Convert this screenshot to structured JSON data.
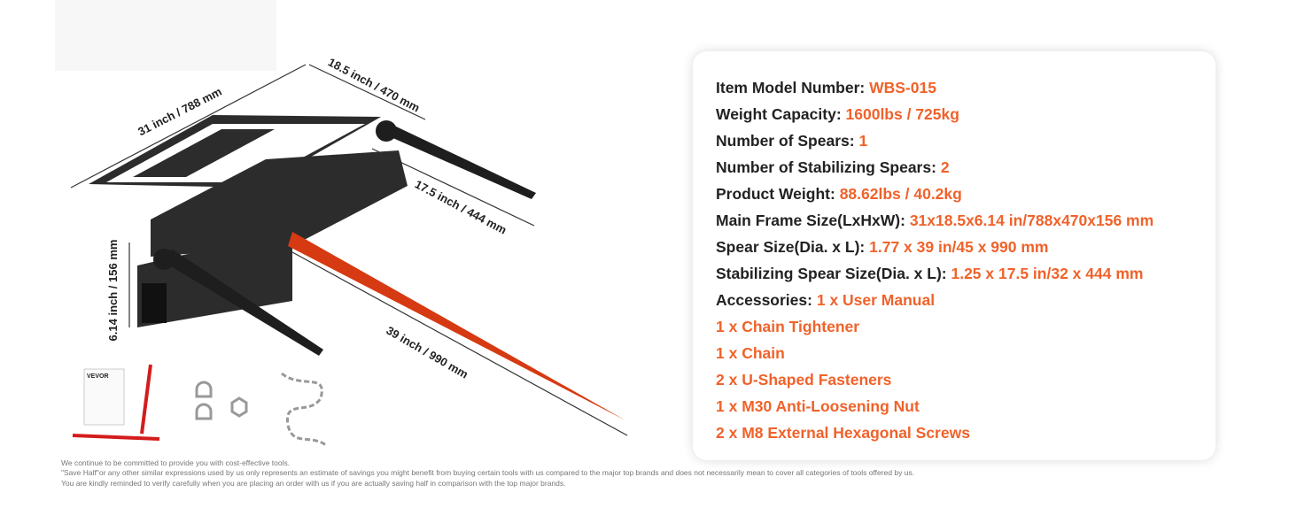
{
  "dimensions": [
    "31 inch / 788 mm",
    "18.5 inch / 470 mm",
    "17.5 inch / 444 mm",
    "6.14 inch / 156 mm",
    "39 inch / 990 mm"
  ],
  "manual_brand": "VEVOR",
  "specs": [
    {
      "label": "Item Model Number:",
      "value": "WBS-015"
    },
    {
      "label": "Weight Capacity:",
      "value": "1600lbs / 725kg"
    },
    {
      "label": "Number of Spears:",
      "value": "1"
    },
    {
      "label": "Number of Stabilizing Spears:",
      "value": "2"
    },
    {
      "label": "Product Weight:",
      "value": "88.62lbs / 40.2kg"
    },
    {
      "label": "Main Frame Size(LxHxW):",
      "value": "31x18.5x6.14 in/788x470x156 mm"
    },
    {
      "label": "Spear Size(Dia. x L):",
      "value": "1.77 x 39 in/45 x 990 mm"
    },
    {
      "label": "Stabilizing Spear Size(Dia. x L):",
      "value": "1.25 x 17.5 in/32 x 444 mm"
    },
    {
      "label": "Accessories:",
      "value": "1 x User Manual"
    }
  ],
  "accessories": [
    "1 x Chain Tightener",
    "1 x Chain",
    "2 x U-Shaped Fasteners",
    "1 x M30 Anti-Loosening Nut",
    "2 x M8 External Hexagonal Screws"
  ],
  "disclaimer": [
    "We continue to be committed to provide you with cost-effective tools.",
    "\"Save Half\"or any other similar expressions used by us only represents an estimate of savings you might benefit from buying certain tools with us compared to the major top brands and does not necessarily mean to cover all categories of tools offered by us.",
    "You are kindly reminded to verify carefully when you are placing an order with us if you are actually saving half in comparison with the top major brands."
  ]
}
